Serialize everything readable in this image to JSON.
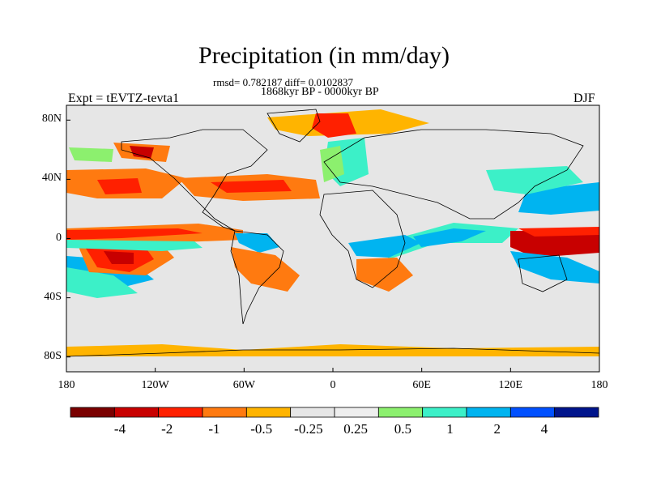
{
  "map": {
    "title": "Precipitation (in mm/day)",
    "stats_text": "rmsd= 0.782187 diff= 0.0102837",
    "period_text": "1868kyr BP - 0000kyr BP",
    "experiment_label": "Expt = tEVTZ-tevta1",
    "season_label": "DJF",
    "projection": "cylindrical equidistant",
    "lat_range": [
      -90,
      90
    ],
    "lon_range": [
      -180,
      180
    ],
    "lat_ticks": [
      {
        "value": 80,
        "label": "80N"
      },
      {
        "value": 40,
        "label": "40N"
      },
      {
        "value": 0,
        "label": "0"
      },
      {
        "value": -40,
        "label": "40S"
      },
      {
        "value": -80,
        "label": "80S"
      }
    ],
    "lon_ticks": [
      {
        "value": -180,
        "label": "180"
      },
      {
        "value": -120,
        "label": "120W"
      },
      {
        "value": -60,
        "label": "60W"
      },
      {
        "value": 0,
        "label": "0"
      },
      {
        "value": 60,
        "label": "60E"
      },
      {
        "value": 120,
        "label": "120E"
      },
      {
        "value": 180,
        "label": "180"
      }
    ],
    "colorbar": {
      "colors": [
        "#7a0000",
        "#c80000",
        "#ff2000",
        "#ff7a10",
        "#ffb400",
        "#e6e6e6",
        "#eeeeee",
        "#8cf06e",
        "#3cf0c8",
        "#00b4f0",
        "#0050ff",
        "#00148c"
      ],
      "labels": [
        "-4",
        "-2",
        "-1",
        "-0.5",
        "-0.25",
        "0.25",
        "0.5",
        "1",
        "2",
        "4"
      ]
    }
  }
}
